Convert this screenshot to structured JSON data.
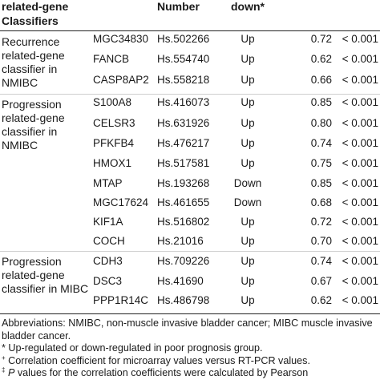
{
  "header": {
    "col1_line1": "related-gene",
    "col1_line2": "Classifiers",
    "col3": "Number",
    "col4": "down*"
  },
  "groups": [
    {
      "lines": [
        "Recurrence",
        "related-gene",
        "classifier in",
        "NMIBC"
      ]
    },
    {
      "lines": [
        "Progression",
        "related-gene",
        "classifier in",
        "NMIBC"
      ]
    },
    {
      "lines": [
        "Progression",
        "related-gene",
        "classifier in MIBC"
      ]
    }
  ],
  "rows": [
    {
      "gene": "MGC34830",
      "number": "Hs.502266",
      "direction": "Up",
      "correlation": "0.72",
      "p": "< 0.001"
    },
    {
      "gene": "FANCB",
      "number": "Hs.554740",
      "direction": "Up",
      "correlation": "0.62",
      "p": "< 0.001"
    },
    {
      "gene": "CASP8AP2",
      "number": "Hs.558218",
      "direction": "Up",
      "correlation": "0.66",
      "p": "< 0.001"
    },
    {
      "gene": "S100A8",
      "number": "Hs.416073",
      "direction": "Up",
      "correlation": "0.85",
      "p": "< 0.001"
    },
    {
      "gene": "CELSR3",
      "number": "Hs.631926",
      "direction": "Up",
      "correlation": "0.80",
      "p": "< 0.001"
    },
    {
      "gene": "PFKFB4",
      "number": "Hs.476217",
      "direction": "Up",
      "correlation": "0.74",
      "p": "< 0.001"
    },
    {
      "gene": "HMOX1",
      "number": "Hs.517581",
      "direction": "Up",
      "correlation": "0.75",
      "p": "< 0.001"
    },
    {
      "gene": "MTAP",
      "number": "Hs.193268",
      "direction": "Down",
      "correlation": "0.85",
      "p": "< 0.001"
    },
    {
      "gene": "MGC17624",
      "number": "Hs.461655",
      "direction": "Down",
      "correlation": "0.68",
      "p": "< 0.001"
    },
    {
      "gene": "KIF1A",
      "number": "Hs.516802",
      "direction": "Up",
      "correlation": "0.72",
      "p": "< 0.001"
    },
    {
      "gene": "COCH",
      "number": "Hs.21016",
      "direction": "Up",
      "correlation": "0.70",
      "p": "< 0.001"
    },
    {
      "gene": "CDH3",
      "number": "Hs.709226",
      "direction": "Up",
      "correlation": "0.74",
      "p": "< 0.001"
    },
    {
      "gene": "DSC3",
      "number": "Hs.41690",
      "direction": "Up",
      "correlation": "0.67",
      "p": "< 0.001"
    },
    {
      "gene": "PPP1R14C",
      "number": "Hs.486798",
      "direction": "Up",
      "correlation": "0.62",
      "p": "< 0.001"
    }
  ],
  "footnotes": {
    "abbreviations": "Abbreviations: NMIBC, non-muscle invasive bladder cancer; MIBC muscle invasive bladder cancer.",
    "star": "* Up-regulated or down-regulated in poor prognosis group.",
    "plus_mark": "+",
    "plus": "Correlation coefficient for microarray values versus RT-PCR values.",
    "p_mark": "‡",
    "p_italic": "P",
    "p_text": " values for the correlation coefficients were calculated by Pearson"
  }
}
